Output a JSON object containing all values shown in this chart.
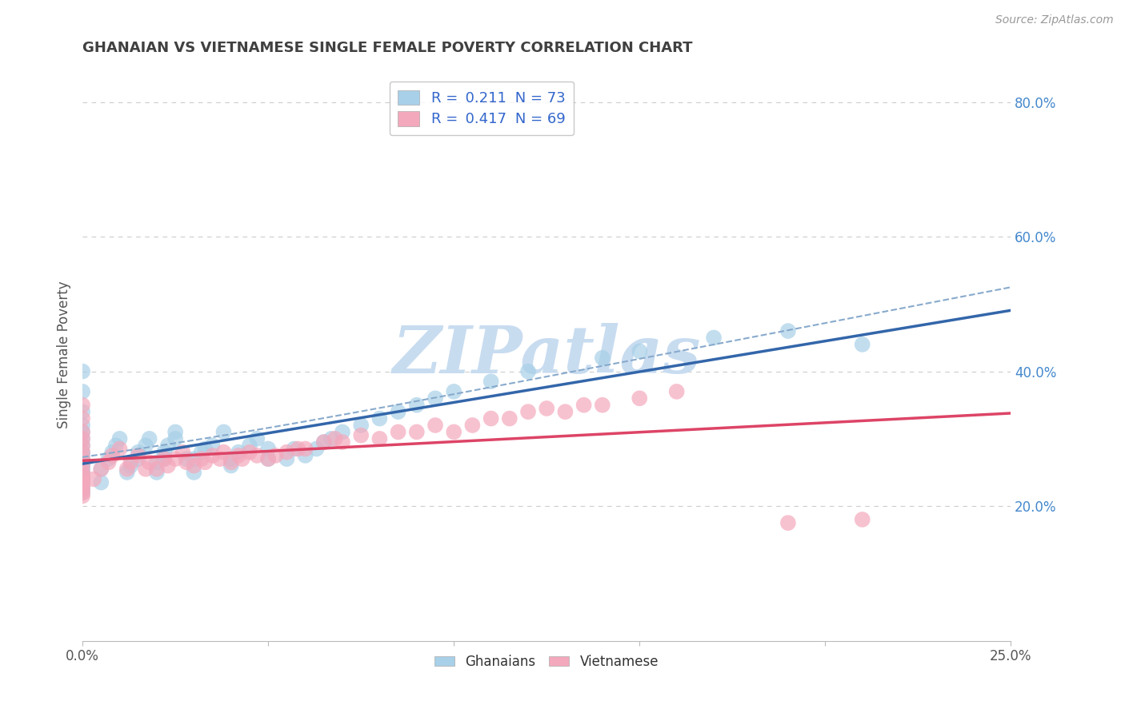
{
  "title": "GHANAIAN VS VIETNAMESE SINGLE FEMALE POVERTY CORRELATION CHART",
  "source_text": "Source: ZipAtlas.com",
  "ylabel": "Single Female Poverty",
  "xlim": [
    0.0,
    0.25
  ],
  "ylim": [
    0.0,
    0.85
  ],
  "xticks": [
    0.0,
    0.05,
    0.1,
    0.15,
    0.2,
    0.25
  ],
  "xticklabels": [
    "0.0%",
    "",
    "",
    "",
    "",
    "25.0%"
  ],
  "yticks_right": [
    0.2,
    0.4,
    0.6,
    0.8
  ],
  "ytick_labels_right": [
    "20.0%",
    "40.0%",
    "60.0%",
    "80.0%"
  ],
  "ghanaian_color": "#A8D0E8",
  "vietnamese_color": "#F4A8BC",
  "ghanaian_R": 0.211,
  "ghanaian_N": 73,
  "vietnamese_R": 0.417,
  "vietnamese_N": 69,
  "watermark": "ZIPatlas",
  "watermark_color": "#C8DCF0",
  "legend_label_ghanaian": "Ghanaians",
  "legend_label_vietnamese": "Vietnamese",
  "title_color": "#404040",
  "title_fontsize": 13,
  "axis_label_color": "#555555",
  "tick_label_color_right": "#4488CC",
  "tick_label_color_bottom": "#555555",
  "grid_color": "#CCCCCC",
  "trend_line_ghanaian_color": "#3366AA",
  "trend_line_ghanaian_ci_color": "#88AACC",
  "trend_line_vietnamese_color": "#DD4466",
  "background_color": "#FFFFFF",
  "ghanaian_scatter": {
    "x": [
      0.0,
      0.0,
      0.0,
      0.0,
      0.0,
      0.0,
      0.0,
      0.0,
      0.0,
      0.0,
      0.0,
      0.0,
      0.0,
      0.0,
      0.0,
      0.0,
      0.0,
      0.0,
      0.0,
      0.0,
      0.005,
      0.005,
      0.007,
      0.008,
      0.009,
      0.01,
      0.012,
      0.013,
      0.015,
      0.015,
      0.017,
      0.018,
      0.02,
      0.02,
      0.022,
      0.022,
      0.023,
      0.025,
      0.025,
      0.028,
      0.03,
      0.03,
      0.032,
      0.033,
      0.035,
      0.038,
      0.04,
      0.04,
      0.042,
      0.045,
      0.047,
      0.05,
      0.05,
      0.055,
      0.057,
      0.06,
      0.063,
      0.065,
      0.067,
      0.07,
      0.075,
      0.08,
      0.085,
      0.09,
      0.095,
      0.1,
      0.11,
      0.12,
      0.14,
      0.15,
      0.17,
      0.19,
      0.21
    ],
    "y": [
      0.22,
      0.225,
      0.23,
      0.235,
      0.24,
      0.245,
      0.25,
      0.255,
      0.26,
      0.265,
      0.27,
      0.275,
      0.28,
      0.29,
      0.3,
      0.31,
      0.32,
      0.34,
      0.37,
      0.4,
      0.235,
      0.255,
      0.27,
      0.28,
      0.29,
      0.3,
      0.25,
      0.26,
      0.27,
      0.28,
      0.29,
      0.3,
      0.25,
      0.265,
      0.27,
      0.28,
      0.29,
      0.3,
      0.31,
      0.27,
      0.25,
      0.27,
      0.28,
      0.285,
      0.29,
      0.31,
      0.26,
      0.27,
      0.28,
      0.29,
      0.3,
      0.27,
      0.285,
      0.27,
      0.285,
      0.275,
      0.285,
      0.295,
      0.3,
      0.31,
      0.32,
      0.33,
      0.34,
      0.35,
      0.36,
      0.37,
      0.385,
      0.4,
      0.42,
      0.43,
      0.45,
      0.46,
      0.44
    ]
  },
  "vietnamese_scatter": {
    "x": [
      0.0,
      0.0,
      0.0,
      0.0,
      0.0,
      0.0,
      0.0,
      0.0,
      0.0,
      0.0,
      0.0,
      0.0,
      0.0,
      0.0,
      0.0,
      0.0,
      0.003,
      0.005,
      0.007,
      0.008,
      0.01,
      0.012,
      0.013,
      0.015,
      0.017,
      0.018,
      0.02,
      0.022,
      0.023,
      0.025,
      0.027,
      0.028,
      0.03,
      0.032,
      0.033,
      0.035,
      0.037,
      0.038,
      0.04,
      0.042,
      0.043,
      0.045,
      0.047,
      0.05,
      0.052,
      0.055,
      0.058,
      0.06,
      0.065,
      0.068,
      0.07,
      0.075,
      0.08,
      0.085,
      0.09,
      0.095,
      0.1,
      0.105,
      0.11,
      0.115,
      0.12,
      0.125,
      0.13,
      0.135,
      0.14,
      0.15,
      0.16,
      0.19,
      0.21
    ],
    "y": [
      0.215,
      0.22,
      0.225,
      0.23,
      0.235,
      0.24,
      0.245,
      0.25,
      0.26,
      0.27,
      0.28,
      0.29,
      0.3,
      0.31,
      0.33,
      0.35,
      0.24,
      0.255,
      0.265,
      0.275,
      0.285,
      0.255,
      0.265,
      0.275,
      0.255,
      0.265,
      0.255,
      0.27,
      0.26,
      0.27,
      0.28,
      0.265,
      0.26,
      0.27,
      0.265,
      0.275,
      0.27,
      0.28,
      0.265,
      0.275,
      0.27,
      0.28,
      0.275,
      0.27,
      0.275,
      0.28,
      0.285,
      0.285,
      0.295,
      0.3,
      0.295,
      0.305,
      0.3,
      0.31,
      0.31,
      0.32,
      0.31,
      0.32,
      0.33,
      0.33,
      0.34,
      0.345,
      0.34,
      0.35,
      0.35,
      0.36,
      0.37,
      0.175,
      0.18
    ]
  }
}
